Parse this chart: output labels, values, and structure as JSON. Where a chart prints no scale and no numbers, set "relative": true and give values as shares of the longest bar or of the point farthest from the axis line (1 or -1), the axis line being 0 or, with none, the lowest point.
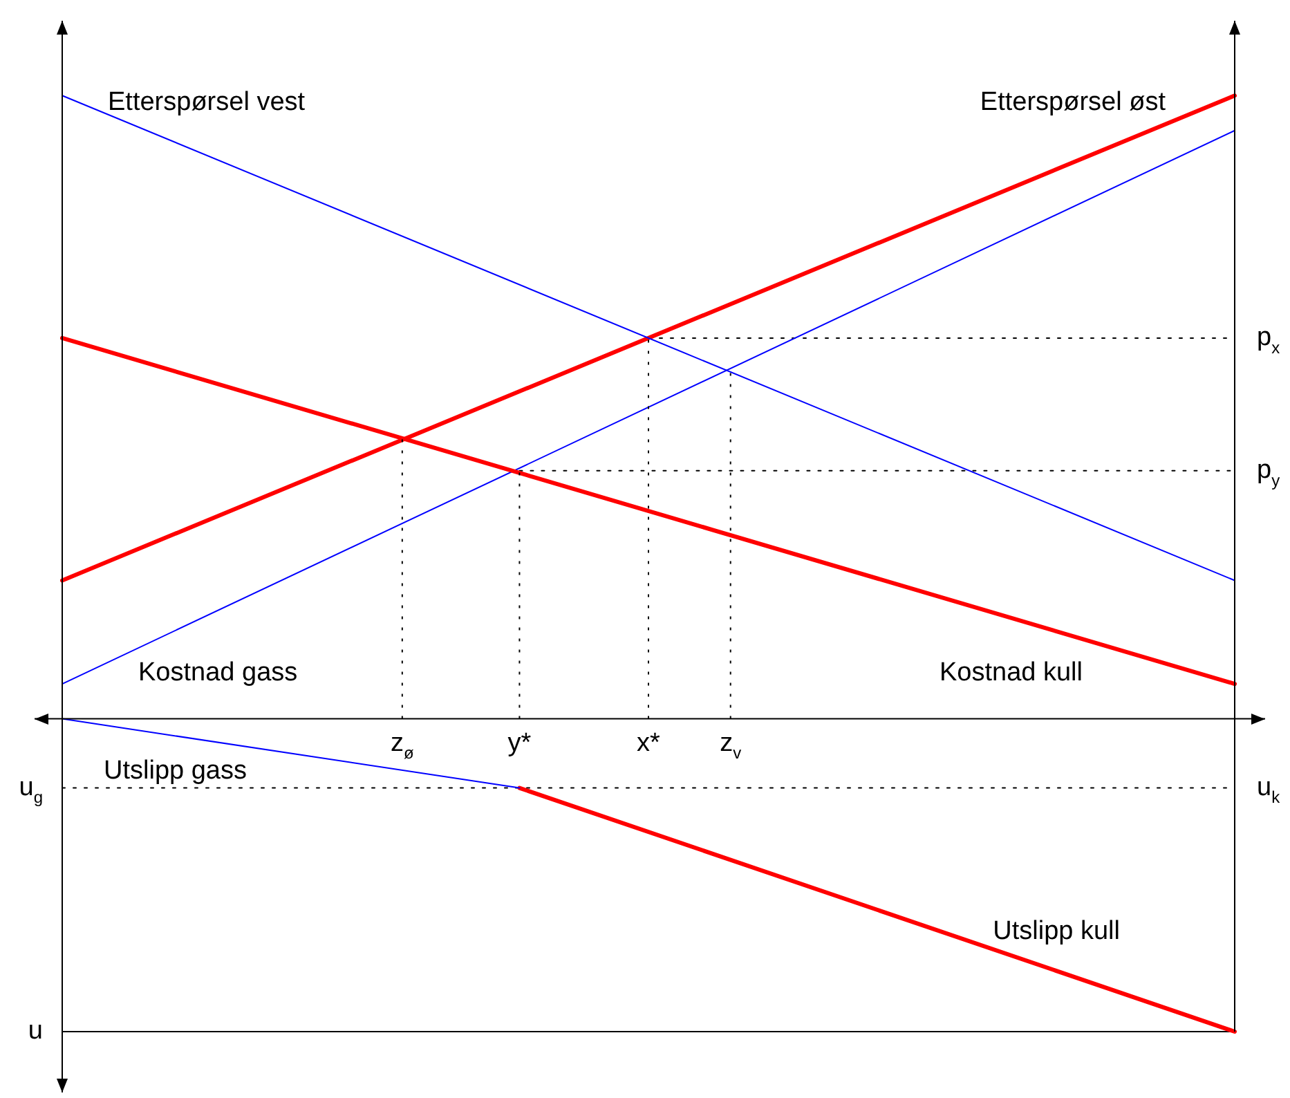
{
  "chart_data": {
    "type": "line",
    "relative": true,
    "categories": [
      null,
      null,
      null,
      null,
      null,
      null,
      null,
      null,
      null,
      null,
      null,
      null,
      null,
      null,
      null,
      null,
      null,
      null,
      null,
      null,
      null,
      null,
      null,
      null,
      null,
      null,
      null,
      null,
      null,
      "z$_{ø}$",
      null,
      null,
      null,
      null,
      null,
      null,
      null,
      null,
      null,
      "y*",
      null,
      null,
      null,
      null,
      null,
      null,
      null,
      null,
      null,
      null,
      "x*",
      null,
      null,
      null,
      null,
      null,
      null,
      "z$_{v}$",
      null,
      null,
      null,
      null,
      null,
      null,
      null,
      null,
      null,
      null,
      null,
      null,
      null,
      null,
      null,
      null,
      null,
      null,
      null,
      null,
      null,
      null,
      null,
      null,
      null,
      null,
      null,
      null,
      null,
      null,
      null,
      null,
      null,
      null,
      null,
      null,
      null,
      null,
      null,
      null,
      null,
      null,
      null
    ],
    "series": [
      {
        "name": "Etterspørsel vest",
        "color": "#0000ff",
        "values": [
          1,
          null,
          null,
          null,
          null,
          null,
          null,
          null,
          null,
          null,
          null,
          null,
          null,
          null,
          null,
          null,
          null,
          null,
          null,
          null,
          null,
          null,
          null,
          null,
          null,
          null,
          null,
          null,
          null,
          null,
          null,
          null,
          null,
          null,
          null,
          null,
          null,
          null,
          null,
          null,
          null,
          null,
          null,
          null,
          null,
          null,
          null,
          null,
          null,
          null,
          null,
          null,
          null,
          null,
          null,
          null,
          null,
          null,
          null,
          null,
          null,
          null,
          null,
          null,
          null,
          null,
          null,
          null,
          null,
          null,
          null,
          null,
          null,
          null,
          null,
          null,
          null,
          null,
          null,
          null,
          null,
          null,
          null,
          null,
          null,
          null,
          null,
          null,
          null,
          null,
          null,
          null,
          null,
          null,
          null,
          null,
          null,
          null,
          null,
          null,
          0.222
        ]
      },
      {
        "name": "Etterspørsel øst",
        "color": "#ff0000",
        "values": [
          0.222,
          null,
          null,
          null,
          null,
          null,
          null,
          null,
          null,
          null,
          null,
          null,
          null,
          null,
          null,
          null,
          null,
          null,
          null,
          null,
          null,
          null,
          null,
          null,
          null,
          null,
          null,
          null,
          null,
          null,
          null,
          null,
          null,
          null,
          null,
          null,
          null,
          null,
          null,
          null,
          null,
          null,
          null,
          null,
          null,
          null,
          null,
          null,
          null,
          null,
          null,
          null,
          null,
          null,
          null,
          null,
          null,
          null,
          null,
          null,
          null,
          null,
          null,
          null,
          null,
          null,
          null,
          null,
          null,
          null,
          null,
          null,
          null,
          null,
          null,
          null,
          null,
          null,
          null,
          null,
          null,
          null,
          null,
          null,
          null,
          null,
          null,
          null,
          null,
          null,
          null,
          null,
          null,
          null,
          null,
          null,
          null,
          null,
          null,
          null,
          1
        ]
      },
      {
        "name": "Kostnad kull",
        "color": "#ff0000",
        "values": [
          0.611,
          null,
          null,
          null,
          null,
          null,
          null,
          null,
          null,
          null,
          null,
          null,
          null,
          null,
          null,
          null,
          null,
          null,
          null,
          null,
          null,
          null,
          null,
          null,
          null,
          null,
          null,
          null,
          null,
          null,
          null,
          null,
          null,
          null,
          null,
          null,
          null,
          null,
          null,
          null,
          null,
          null,
          null,
          null,
          null,
          null,
          null,
          null,
          null,
          null,
          null,
          null,
          null,
          null,
          null,
          null,
          null,
          null,
          null,
          null,
          null,
          null,
          null,
          null,
          null,
          null,
          null,
          null,
          null,
          null,
          null,
          null,
          null,
          null,
          null,
          null,
          null,
          null,
          null,
          null,
          null,
          null,
          null,
          null,
          null,
          null,
          null,
          null,
          null,
          null,
          null,
          null,
          null,
          null,
          null,
          null,
          null,
          null,
          null,
          null,
          0.056
        ]
      },
      {
        "name": "Kostnad gass",
        "color": "#0000ff",
        "values": [
          0.056,
          null,
          null,
          null,
          null,
          null,
          null,
          null,
          null,
          null,
          null,
          null,
          null,
          null,
          null,
          null,
          null,
          null,
          null,
          null,
          null,
          null,
          null,
          null,
          null,
          null,
          null,
          null,
          null,
          null,
          null,
          null,
          null,
          null,
          null,
          null,
          null,
          null,
          null,
          null,
          null,
          null,
          null,
          null,
          null,
          null,
          null,
          null,
          null,
          null,
          null,
          null,
          null,
          null,
          null,
          null,
          null,
          null,
          null,
          null,
          null,
          null,
          null,
          null,
          null,
          null,
          null,
          null,
          null,
          null,
          null,
          null,
          null,
          null,
          null,
          null,
          null,
          null,
          null,
          null,
          null,
          null,
          null,
          null,
          null,
          null,
          null,
          null,
          null,
          null,
          null,
          null,
          null,
          null,
          null,
          null,
          null,
          null,
          null,
          null,
          0.944
        ]
      },
      {
        "name": "Utslipp gass",
        "color": "#0000ff",
        "values": [
          0,
          null,
          null,
          null,
          null,
          null,
          null,
          null,
          null,
          null,
          null,
          null,
          null,
          null,
          null,
          null,
          null,
          null,
          null,
          null,
          null,
          null,
          null,
          null,
          null,
          null,
          null,
          null,
          null,
          null,
          null,
          null,
          null,
          null,
          null,
          null,
          null,
          null,
          null,
          -0.111,
          null,
          null,
          null,
          null,
          null,
          null,
          null,
          null,
          null,
          null,
          null,
          null,
          null,
          null,
          null,
          null,
          null,
          null,
          null,
          null,
          null,
          null,
          null,
          null,
          null,
          null,
          null,
          null,
          null,
          null,
          null,
          null,
          null,
          null,
          null,
          null,
          null,
          null,
          null,
          null,
          null,
          null,
          null,
          null,
          null,
          null,
          null,
          null,
          null,
          null,
          null,
          null,
          null,
          null,
          null,
          null,
          null,
          null,
          null,
          null,
          null
        ]
      },
      {
        "name": "Utslipp kull",
        "color": "#ff0000",
        "values": [
          null,
          null,
          null,
          null,
          null,
          null,
          null,
          null,
          null,
          null,
          null,
          null,
          null,
          null,
          null,
          null,
          null,
          null,
          null,
          null,
          null,
          null,
          null,
          null,
          null,
          null,
          null,
          null,
          null,
          null,
          null,
          null,
          null,
          null,
          null,
          null,
          null,
          null,
          null,
          -0.111,
          null,
          null,
          null,
          null,
          null,
          null,
          null,
          null,
          null,
          null,
          null,
          null,
          null,
          null,
          null,
          null,
          null,
          null,
          null,
          null,
          null,
          null,
          null,
          null,
          null,
          null,
          null,
          null,
          null,
          null,
          null,
          null,
          null,
          null,
          null,
          null,
          null,
          null,
          null,
          null,
          null,
          null,
          null,
          null,
          null,
          null,
          null,
          null,
          null,
          null,
          null,
          null,
          null,
          null,
          null,
          null,
          null,
          null,
          null,
          null,
          -0.502
        ]
      },
      {
        "name": "p$_{x}$",
        "color": "#000000",
        "line_style": "dotted",
        "values": [
          null,
          null,
          null,
          null,
          null,
          null,
          null,
          null,
          null,
          null,
          null,
          null,
          null,
          null,
          null,
          null,
          null,
          null,
          null,
          null,
          null,
          null,
          null,
          null,
          null,
          null,
          null,
          null,
          null,
          null,
          null,
          null,
          null,
          null,
          null,
          null,
          null,
          null,
          null,
          null,
          null,
          null,
          null,
          null,
          null,
          null,
          null,
          null,
          null,
          null,
          0.611,
          null,
          null,
          null,
          null,
          null,
          null,
          null,
          null,
          null,
          null,
          null,
          null,
          null,
          null,
          null,
          null,
          null,
          null,
          null,
          null,
          null,
          null,
          null,
          null,
          null,
          null,
          null,
          null,
          null,
          null,
          null,
          null,
          null,
          null,
          null,
          null,
          null,
          null,
          null,
          null,
          null,
          null,
          null,
          null,
          null,
          null,
          null,
          null,
          null,
          0.611
        ]
      },
      {
        "name": "p$_{y}$",
        "color": "#000000",
        "line_style": "dotted",
        "values": [
          null,
          null,
          null,
          null,
          null,
          null,
          null,
          null,
          null,
          null,
          null,
          null,
          null,
          null,
          null,
          null,
          null,
          null,
          null,
          null,
          null,
          null,
          null,
          null,
          null,
          null,
          null,
          null,
          null,
          null,
          null,
          null,
          null,
          null,
          null,
          null,
          null,
          null,
          null,
          0.398,
          null,
          null,
          null,
          null,
          null,
          null,
          null,
          null,
          null,
          null,
          null,
          null,
          null,
          null,
          null,
          null,
          null,
          null,
          null,
          null,
          null,
          null,
          null,
          null,
          null,
          null,
          null,
          null,
          null,
          null,
          null,
          null,
          null,
          null,
          null,
          null,
          null,
          null,
          null,
          null,
          null,
          null,
          null,
          null,
          null,
          null,
          null,
          null,
          null,
          null,
          null,
          null,
          null,
          null,
          null,
          null,
          null,
          null,
          null,
          null,
          0.398
        ]
      },
      {
        "name": "u$_{g}$",
        "color": "#000000",
        "line_style": "dotted",
        "values": [
          -0.111,
          null,
          null,
          null,
          null,
          null,
          null,
          null,
          null,
          null,
          null,
          null,
          null,
          null,
          null,
          null,
          null,
          null,
          null,
          null,
          null,
          null,
          null,
          null,
          null,
          null,
          null,
          null,
          null,
          null,
          null,
          null,
          null,
          null,
          null,
          null,
          null,
          null,
          null,
          null,
          null,
          null,
          null,
          null,
          null,
          null,
          null,
          null,
          null,
          null,
          null,
          null,
          null,
          null,
          null,
          null,
          null,
          null,
          null,
          null,
          null,
          null,
          null,
          null,
          null,
          null,
          null,
          null,
          null,
          null,
          null,
          null,
          null,
          null,
          null,
          null,
          null,
          null,
          null,
          null,
          null,
          null,
          null,
          null,
          null,
          null,
          null,
          null,
          null,
          null,
          null,
          null,
          null,
          null,
          null,
          null,
          null,
          null,
          null,
          null,
          -0.111
        ]
      },
      {
        "name": "u",
        "color": "#000000",
        "line_style": "solid",
        "values": [
          -0.502,
          null,
          null,
          null,
          null,
          null,
          null,
          null,
          null,
          null,
          null,
          null,
          null,
          null,
          null,
          null,
          null,
          null,
          null,
          null,
          null,
          null,
          null,
          null,
          null,
          null,
          null,
          null,
          null,
          null,
          null,
          null,
          null,
          null,
          null,
          null,
          null,
          null,
          null,
          null,
          null,
          null,
          null,
          null,
          null,
          null,
          null,
          null,
          null,
          null,
          null,
          null,
          null,
          null,
          null,
          null,
          null,
          null,
          null,
          null,
          null,
          null,
          null,
          null,
          null,
          null,
          null,
          null,
          null,
          null,
          null,
          null,
          null,
          null,
          null,
          null,
          null,
          null,
          null,
          null,
          null,
          null,
          null,
          null,
          null,
          null,
          null,
          null,
          null,
          null,
          null,
          null,
          null,
          null,
          null,
          null,
          null,
          null,
          null,
          null,
          -0.502
        ]
      }
    ],
    "ref_lines": [
      {
        "axis": "x",
        "value": "z$_{ø}$",
        "color": "#000000",
        "line_style": "dotted"
      },
      {
        "axis": "x",
        "value": "y*",
        "color": "#000000",
        "line_style": "dotted"
      },
      {
        "axis": "x",
        "value": "x*",
        "color": "#000000",
        "line_style": "dotted"
      },
      {
        "axis": "x",
        "value": "z$_{v}$",
        "color": "#000000",
        "line_style": "dotted"
      }
    ],
    "annotations": [
      "u$_{k}$"
    ]
  }
}
